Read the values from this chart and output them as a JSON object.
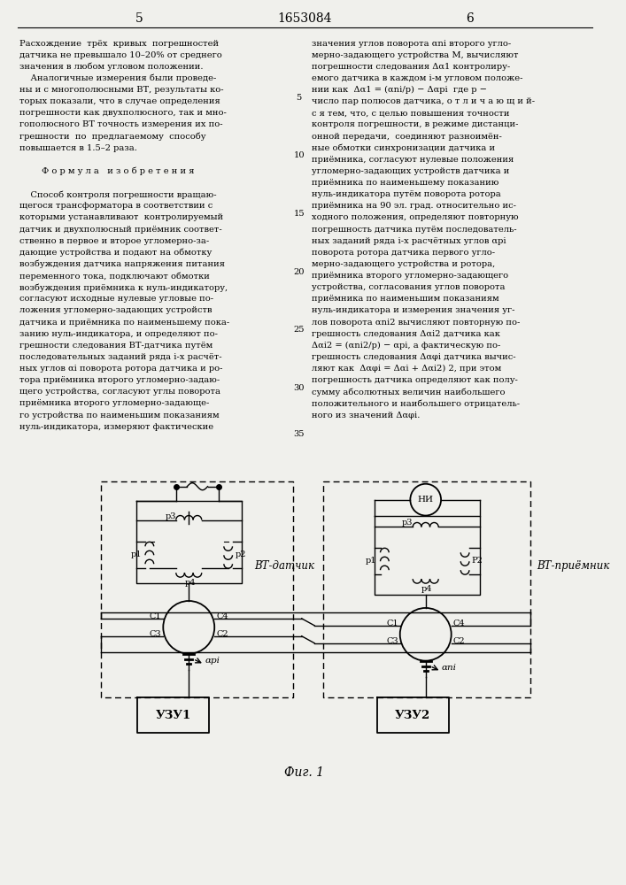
{
  "bg_color": "#f0f0ec",
  "page_width": 7.07,
  "page_height": 10.0,
  "header_page_left": "5",
  "header_center": "1653084",
  "header_page_right": "6",
  "left_col_text": [
    "Расхождение  трёх  кривых  погрешностей",
    "датчика не превышало 10–20% от среднего",
    "значения в любом угловом положении.",
    "    Аналогичные измерения были проведе-",
    "ны и с многополюсными ВТ, результаты ко-",
    "торых показали, что в случае определения",
    "погрешности как двухполюсного, так и мно-",
    "гополюсного ВТ точность измерения их по-",
    "грешности  по  предлагаемому  способу",
    "повышается в 1.5–2 раза.",
    "",
    "        Ф о р м у л а   и з о б р е т е н и я",
    "",
    "    Способ контроля погрешности вращаю-",
    "щегося трансформатора в соответствии с",
    "которыми устанавливают  контролируемый",
    "датчик и двухполюсный приёмник соответ-",
    "ственно в первое и второе угломерно-за-",
    "дающие устройства и подают на обмотку",
    "возбуждения датчика напряжения питания",
    "переменного тока, подключают обмотки",
    "возбуждения приёмника к нуль-индикатору,",
    "согласуют исходные нулевые угловые по-",
    "ложения угломерно-задающих устройств",
    "датчика и приёмника по наименьшему пока-",
    "занию нуль-индикатора, и определяют по-",
    "грешности следования ВТ-датчика путём",
    "последовательных заданий ряда i-х расчёт-",
    "ных углов αi поворота ротора датчика и ро-",
    "тора приёмника второго угломерно-задаю-",
    "щего устройства, согласуют углы поворота",
    "приёмника второго угломерно-задающе-",
    "го устройства по наименьшим показаниям",
    "нуль-индикатора, измеряют фактические"
  ],
  "right_col_text": [
    "значения углов поворота αni второго угло-",
    "мерно-задающего устройства М, вычисляют",
    "погрешности следования Δα1 контролиру-",
    "емого датчика в каждом i-м угловом положе-",
    "нии как  Δα1 = (αni/р) − Δαpi  где р −",
    "число пар полюсов датчика, о т л и ч а ю щ и й-",
    "с я тем, что, с целью повышения точности",
    "контроля погрешности, в режиме дистанци-",
    "онной передачи,  соединяют разноимён-",
    "ные обмотки синхронизации датчика и",
    "приёмника, согласуют нулевые положения",
    "угломерно-задающих устройств датчика и",
    "приёмника по наименьшему показанию",
    "нуль-индикатора путём поворота ротора",
    "приёмника на 90 эл. град. относительно ис-",
    "ходного положения, определяют повторную",
    "погрешность датчика путём последователь-",
    "ных заданий ряда i-х расчётных углов αpi",
    "поворота ротора датчика первого угло-",
    "мерно-задающего устройства и ротора,",
    "приёмника второго угломерно-задающего",
    "устройства, согласования углов поворота",
    "приёмника по наименьшим показаниям",
    "нуль-индикатора и измерения значения уг-",
    "лов поворота αni2 вычисляют повторную по-",
    "грешность следования Δαi2 датчика как",
    "Δαi2 = (αni2/р) − αpi, а фактическую по-",
    "грешность следования Δαφi датчика вычис-",
    "ляют как  Δαφi = Δαi + Δαi2) 2, при этом",
    "погрешность датчика определяют как полу-",
    "сумму абсолютных величин наибольшего",
    "положительного и наибольшего отрицатель-",
    "ного из значений Δαφi."
  ],
  "line_num_values": [
    5,
    10,
    15,
    20,
    25,
    30,
    35
  ],
  "line_num_positions": [
    4,
    9,
    14,
    19,
    24,
    29,
    33
  ],
  "fig_label": "Фиг. 1",
  "vt_sensor_label": "ВТ-датчик",
  "vt_receiver_label": "ВТ-приёмник",
  "ni_label": "НИ",
  "uzu1_label": "УЗУ1",
  "uzu2_label": "УЗУ2",
  "alpha_pi_label": "αpi",
  "alpha_ni_label": "αni"
}
